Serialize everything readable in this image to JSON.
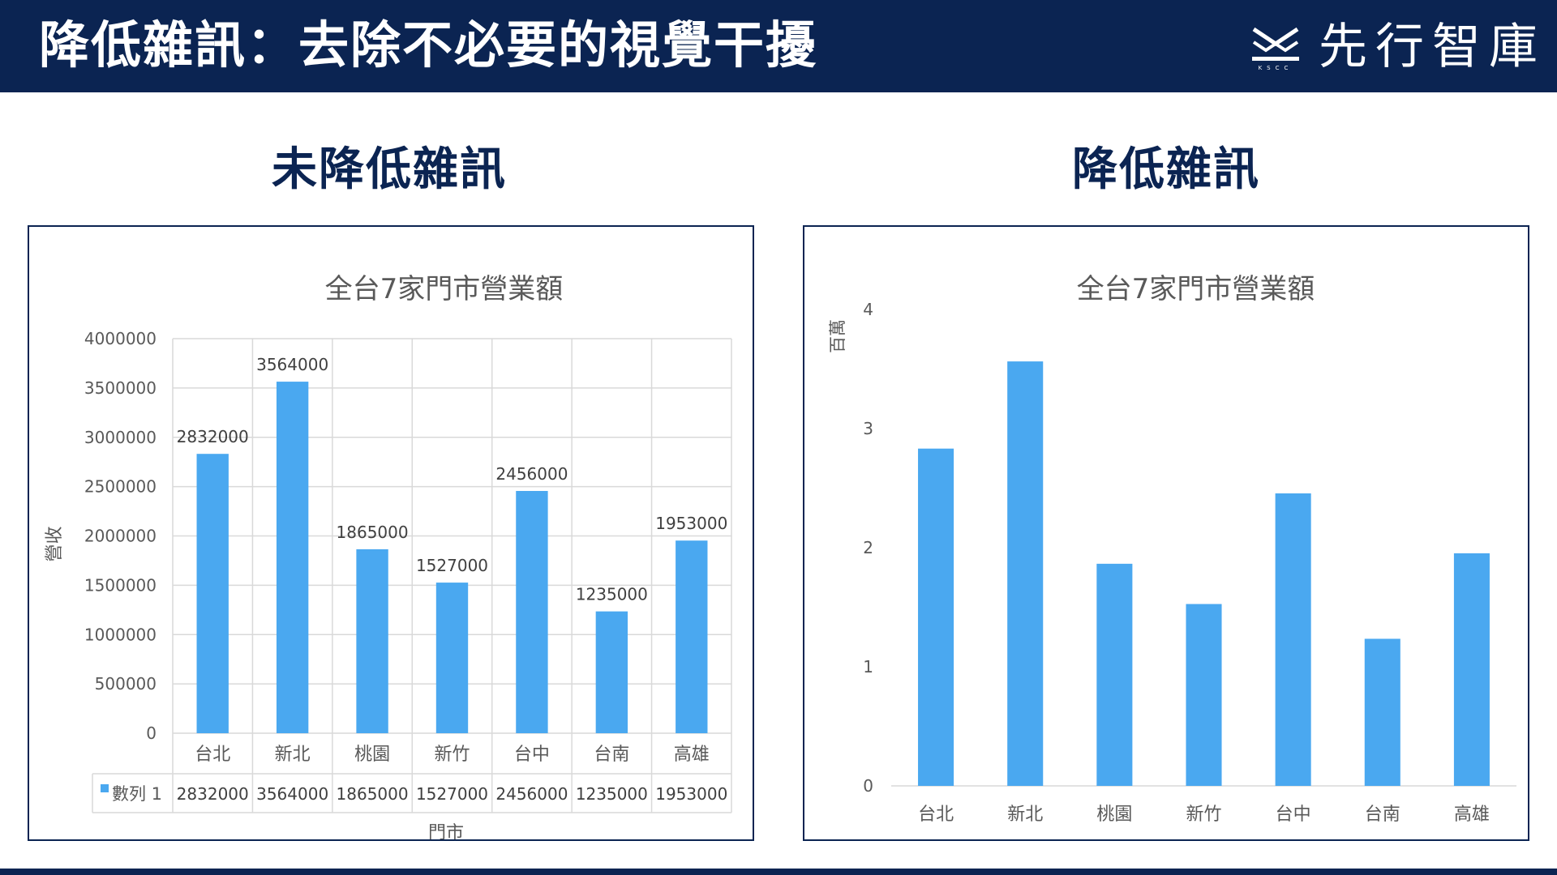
{
  "slide": {
    "title": "降低雜訊：去除不必要的視覺干擾",
    "logo_name": "先行智庫",
    "logo_sub": "KSCC",
    "logo_icon": "mountain-wave-logo-icon",
    "left_heading": "未降低雜訊",
    "right_heading": "降低雜訊"
  },
  "colors": {
    "header": "#0b2452",
    "bar": "#4aa8f0",
    "grid": "#d9d9d9",
    "text": "#595959"
  },
  "chart_data": [
    {
      "type": "bar",
      "title": "全台7家門市營業額",
      "categories": [
        "台北",
        "新北",
        "桃園",
        "新竹",
        "台中",
        "台南",
        "高雄"
      ],
      "series": [
        {
          "name": "數列 1",
          "values": [
            2832000,
            3564000,
            1865000,
            1527000,
            2456000,
            1235000,
            1953000
          ]
        }
      ],
      "yticks": [
        "0",
        "500000",
        "1000000",
        "1500000",
        "2000000",
        "2500000",
        "3000000",
        "3500000",
        "4000000"
      ],
      "ylim": [
        0,
        4000000
      ],
      "ylabel": "營收",
      "xlabel": "門市",
      "data_labels": [
        "2832000",
        "3564000",
        "1865000",
        "1527000",
        "2456000",
        "1235000",
        "1953000"
      ],
      "grid": "horizontal and vertical",
      "data_table": true,
      "legend": "data table"
    },
    {
      "type": "bar",
      "title": "全台7家門市營業額",
      "categories": [
        "台北",
        "新北",
        "桃園",
        "新竹",
        "台中",
        "台南",
        "高雄"
      ],
      "values": [
        2.832,
        3.564,
        1.865,
        1.527,
        2.456,
        1.235,
        1.953
      ],
      "yticks": [
        "0",
        "1",
        "2",
        "3",
        "4"
      ],
      "ylim": [
        0,
        4
      ],
      "unit_label": "百萬",
      "grid": "none",
      "legend": "none"
    }
  ]
}
